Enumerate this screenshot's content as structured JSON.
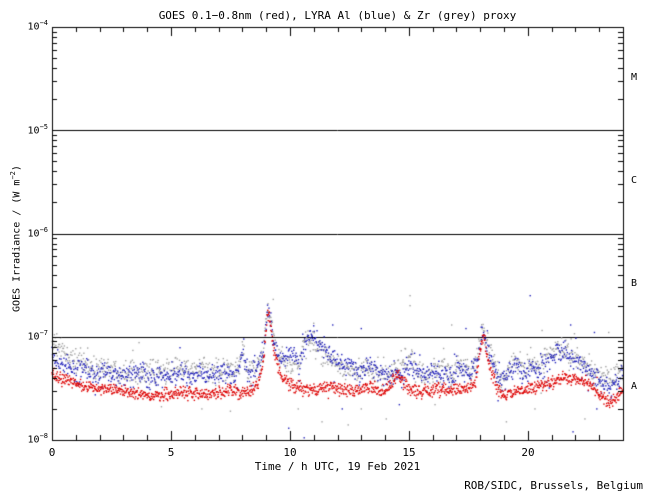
{
  "title": "GOES 0.1−0.8nm (red), LYRA Al (blue) & Zr (grey) proxy",
  "credit": "ROB/SIDC, Brussels, Belgium",
  "flare_classes": [
    "M",
    "C",
    "B",
    "A"
  ],
  "axes": {
    "y": {
      "label": {
        "pre": "GOES Irradiance / (W m",
        "exp": "−2",
        "post": ")"
      },
      "ticks": [
        {
          "base": "10",
          "exp": "−4"
        },
        {
          "base": "10",
          "exp": "−5"
        },
        {
          "base": "10",
          "exp": "−6"
        },
        {
          "base": "10",
          "exp": "−7"
        },
        {
          "base": "10",
          "exp": "−8"
        }
      ]
    },
    "x": {
      "label": "Time / h UTC, 19 Feb 2021",
      "ticks": [
        "0",
        "5",
        "10",
        "15",
        "20"
      ]
    }
  },
  "colors": {
    "background": "#ffffff",
    "axis": "#000000",
    "red": "#dd0000",
    "blue": "#2323bb",
    "grey": "#a3a3a3"
  },
  "chart_data": {
    "type": "scatter",
    "title": "GOES 0.1−0.8nm (red), LYRA Al (blue) & Zr (grey) proxy",
    "xlabel": "Time / h UTC, 19 Feb 2021",
    "ylabel": "GOES Irradiance / (W m−2)",
    "xlim": [
      0,
      24
    ],
    "ylim": [
      1e-08,
      0.0001
    ],
    "yscale": "log",
    "x_major_tick_step": 5,
    "x_minor_tick_step": 1,
    "reference_lines": [
      1e-05,
      1e-06,
      1e-07
    ],
    "flare_class_bands": [
      {
        "label": "M",
        "range": [
          1e-05,
          0.0001
        ]
      },
      {
        "label": "C",
        "range": [
          1e-06,
          1e-05
        ]
      },
      {
        "label": "B",
        "range": [
          1e-07,
          1e-06
        ]
      },
      {
        "label": "A",
        "range": [
          1e-08,
          1e-07
        ]
      }
    ],
    "series": [
      {
        "name": "LYRA Zr proxy",
        "color": "#a3a3a3",
        "scatter_sigma_log": 0.055,
        "stray_fraction": 0.07,
        "stray_mult": 2.6,
        "dot_step_h": 0.02,
        "points": [
          [
            0,
            8.6e-08
          ],
          [
            0.3,
            7.8e-08
          ],
          [
            0.6,
            6.8e-08
          ],
          [
            1,
            5.9e-08
          ],
          [
            1.5,
            5.2e-08
          ],
          [
            2,
            4.8e-08
          ],
          [
            2.3,
            5.3e-08
          ],
          [
            2.6,
            4.8e-08
          ],
          [
            3,
            4.6e-08
          ],
          [
            3.4,
            5e-08
          ],
          [
            3.8,
            4.6e-08
          ],
          [
            4.2,
            4.4e-08
          ],
          [
            4.6,
            4.5e-08
          ],
          [
            5,
            4.7e-08
          ],
          [
            5.4,
            5.5e-08
          ],
          [
            5.8,
            4.6e-08
          ],
          [
            6.2,
            4.8e-08
          ],
          [
            6.6,
            4.5e-08
          ],
          [
            7,
            4.7e-08
          ],
          [
            7.4,
            4.9e-08
          ],
          [
            7.8,
            4.4e-08
          ],
          [
            8.05,
            8e-08
          ],
          [
            8.2,
            4.6e-08
          ],
          [
            8.6,
            4.8e-08
          ],
          [
            8.9,
            7.5e-08
          ],
          [
            9.05,
            2e-07
          ],
          [
            9.15,
            1.6e-07
          ],
          [
            9.3,
            1e-07
          ],
          [
            9.5,
            7e-08
          ],
          [
            9.8,
            5.8e-08
          ],
          [
            10.1,
            4.8e-08
          ],
          [
            10.4,
            6e-08
          ],
          [
            10.7,
            9.5e-08
          ],
          [
            10.9,
            9e-08
          ],
          [
            11.1,
            8e-08
          ],
          [
            11.4,
            7e-08
          ],
          [
            11.7,
            6e-08
          ],
          [
            12,
            5.2e-08
          ],
          [
            12.4,
            4.4e-08
          ],
          [
            12.8,
            4.7e-08
          ],
          [
            13.2,
            5.2e-08
          ],
          [
            13.6,
            4.6e-08
          ],
          [
            14,
            4.1e-08
          ],
          [
            14.4,
            4.4e-08
          ],
          [
            14.8,
            5.6e-08
          ],
          [
            15.05,
            6.5e-08
          ],
          [
            15.3,
            4.6e-08
          ],
          [
            15.7,
            4.2e-08
          ],
          [
            16,
            4.6e-08
          ],
          [
            16.4,
            5.3e-08
          ],
          [
            16.8,
            4.6e-08
          ],
          [
            17.2,
            5.1e-08
          ],
          [
            17.6,
            4.8e-08
          ],
          [
            17.9,
            6.5e-08
          ],
          [
            18.1,
            1.2e-07
          ],
          [
            18.25,
            9e-08
          ],
          [
            18.45,
            6.5e-08
          ],
          [
            18.7,
            4.8e-08
          ],
          [
            18.9,
            4.1e-08
          ],
          [
            19.2,
            4.9e-08
          ],
          [
            19.5,
            5.9e-08
          ],
          [
            19.9,
            4.9e-08
          ],
          [
            20.2,
            5.9e-08
          ],
          [
            20.5,
            5.1e-08
          ],
          [
            20.8,
            6.3e-08
          ],
          [
            21.1,
            7.2e-08
          ],
          [
            21.4,
            7.8e-08
          ],
          [
            21.7,
            6.9e-08
          ],
          [
            22.1,
            5.9e-08
          ],
          [
            22.5,
            5e-08
          ],
          [
            22.9,
            4.4e-08
          ],
          [
            23.3,
            3.8e-08
          ],
          [
            23.7,
            4.3e-08
          ],
          [
            24,
            5e-08
          ]
        ],
        "outliers": [
          [
            9.3,
            2.3e-07
          ],
          [
            11.0,
            1.35e-07
          ],
          [
            15.05,
            2.5e-07
          ],
          [
            15.05,
            2e-07
          ],
          [
            16.8,
            1.3e-07
          ],
          [
            20.6,
            1.15e-07
          ],
          [
            23.4,
            1.1e-07
          ],
          [
            4.6,
            2.1e-08
          ],
          [
            6.3,
            2e-08
          ],
          [
            7.5,
            1.9e-08
          ],
          [
            10.35,
            2e-08
          ],
          [
            11.35,
            1.5e-08
          ],
          [
            12.45,
            1.4e-08
          ],
          [
            13.0,
            2e-08
          ],
          [
            14.05,
            1.6e-08
          ],
          [
            16.1,
            2.2e-08
          ],
          [
            19.1,
            1.5e-08
          ],
          [
            20.3,
            2e-08
          ],
          [
            22.4,
            1.6e-08
          ]
        ]
      },
      {
        "name": "LYRA Al proxy",
        "color": "#2323bb",
        "scatter_sigma_log": 0.05,
        "stray_fraction": 0.06,
        "stray_mult": 2.5,
        "dot_step_h": 0.02,
        "points": [
          [
            0,
            6.2e-08
          ],
          [
            0.3,
            5.7e-08
          ],
          [
            0.6,
            5.2e-08
          ],
          [
            1,
            4.8e-08
          ],
          [
            1.5,
            4.5e-08
          ],
          [
            2,
            4.3e-08
          ],
          [
            2.3,
            4.7e-08
          ],
          [
            2.6,
            4.3e-08
          ],
          [
            3,
            4.1e-08
          ],
          [
            3.4,
            4.5e-08
          ],
          [
            3.8,
            4.2e-08
          ],
          [
            4.2,
            4e-08
          ],
          [
            4.6,
            4.1e-08
          ],
          [
            5,
            4.3e-08
          ],
          [
            5.4,
            4.5e-08
          ],
          [
            5.8,
            4.2e-08
          ],
          [
            6.2,
            4.4e-08
          ],
          [
            6.6,
            4.2e-08
          ],
          [
            7,
            4.4e-08
          ],
          [
            7.4,
            4.6e-08
          ],
          [
            7.8,
            4.2e-08
          ],
          [
            8.05,
            7.5e-08
          ],
          [
            8.2,
            4.3e-08
          ],
          [
            8.6,
            4.6e-08
          ],
          [
            8.9,
            7e-08
          ],
          [
            9.05,
            1.9e-07
          ],
          [
            9.15,
            1.6e-07
          ],
          [
            9.3,
            9e-08
          ],
          [
            9.5,
            6.5e-08
          ],
          [
            9.8,
            6e-08
          ],
          [
            10.1,
            6.8e-08
          ],
          [
            10.4,
            5.2e-08
          ],
          [
            10.7,
            9e-08
          ],
          [
            10.9,
            1.05e-07
          ],
          [
            11.1,
            9e-08
          ],
          [
            11.4,
            7.8e-08
          ],
          [
            11.7,
            6.8e-08
          ],
          [
            12,
            5.8e-08
          ],
          [
            12.3,
            5e-08
          ],
          [
            12.5,
            5.6e-08
          ],
          [
            12.7,
            4.6e-08
          ],
          [
            13,
            4.4e-08
          ],
          [
            13.4,
            5.8e-08
          ],
          [
            13.7,
            4.6e-08
          ],
          [
            14,
            4.2e-08
          ],
          [
            14.4,
            4.5e-08
          ],
          [
            14.8,
            4.3e-08
          ],
          [
            15.1,
            5.6e-08
          ],
          [
            15.4,
            4.4e-08
          ],
          [
            15.8,
            4.1e-08
          ],
          [
            16.1,
            5e-08
          ],
          [
            16.4,
            4.4e-08
          ],
          [
            16.8,
            4.2e-08
          ],
          [
            17.1,
            5.2e-08
          ],
          [
            17.4,
            4.6e-08
          ],
          [
            17.7,
            5e-08
          ],
          [
            17.9,
            6e-08
          ],
          [
            18.1,
            1.15e-07
          ],
          [
            18.25,
            8.5e-08
          ],
          [
            18.45,
            6e-08
          ],
          [
            18.7,
            4.4e-08
          ],
          [
            18.9,
            3.7e-08
          ],
          [
            19.2,
            4.3e-08
          ],
          [
            19.5,
            5.4e-08
          ],
          [
            19.8,
            4.3e-08
          ],
          [
            20.1,
            5e-08
          ],
          [
            20.4,
            4.4e-08
          ],
          [
            20.7,
            5.4e-08
          ],
          [
            21,
            6.3e-08
          ],
          [
            21.3,
            7.3e-08
          ],
          [
            21.6,
            6.9e-08
          ],
          [
            22,
            5.9e-08
          ],
          [
            22.4,
            5e-08
          ],
          [
            22.8,
            4.2e-08
          ],
          [
            23.2,
            3.4e-08
          ],
          [
            23.5,
            3.2e-08
          ],
          [
            23.8,
            3.8e-08
          ],
          [
            24,
            4.4e-08
          ]
        ],
        "outliers": [
          [
            11.8,
            1.3e-07
          ],
          [
            13.0,
            1.2e-07
          ],
          [
            17.4,
            1.2e-07
          ],
          [
            20.1,
            2.5e-07
          ],
          [
            21.8,
            1.3e-07
          ],
          [
            22.8,
            1.1e-07
          ],
          [
            9.95,
            1.3e-08
          ],
          [
            10.6,
            1.05e-08
          ],
          [
            12.2,
            2e-08
          ],
          [
            14.6,
            2.2e-08
          ],
          [
            18.75,
            2.4e-08
          ],
          [
            21.9,
            1.2e-08
          ],
          [
            22.9,
            2e-08
          ]
        ]
      },
      {
        "name": "GOES 0.1-0.8nm",
        "color": "#dd0000",
        "scatter_sigma_log": 0.03,
        "stray_fraction": 0.012,
        "stray_mult": 2.0,
        "dot_step_h": 0.016,
        "points": [
          [
            0,
            4.2e-08
          ],
          [
            0.3,
            4e-08
          ],
          [
            0.6,
            3.8e-08
          ],
          [
            1,
            3.5e-08
          ],
          [
            1.5,
            3.3e-08
          ],
          [
            2,
            3.1e-08
          ],
          [
            2.5,
            3.1e-08
          ],
          [
            3,
            3e-08
          ],
          [
            3.5,
            2.8e-08
          ],
          [
            4,
            2.7e-08
          ],
          [
            4.5,
            2.7e-08
          ],
          [
            5,
            2.8e-08
          ],
          [
            5.5,
            2.9e-08
          ],
          [
            6,
            2.8e-08
          ],
          [
            6.5,
            2.8e-08
          ],
          [
            7,
            2.9e-08
          ],
          [
            7.5,
            3e-08
          ],
          [
            8,
            2.8e-08
          ],
          [
            8.4,
            3e-08
          ],
          [
            8.7,
            3.6e-08
          ],
          [
            8.9,
            6e-08
          ],
          [
            9.05,
            1.8e-07
          ],
          [
            9.15,
            1.5e-07
          ],
          [
            9.3,
            8e-08
          ],
          [
            9.5,
            5e-08
          ],
          [
            9.7,
            4e-08
          ],
          [
            10,
            3.4e-08
          ],
          [
            10.3,
            3.2e-08
          ],
          [
            10.6,
            3.1e-08
          ],
          [
            11,
            3.1e-08
          ],
          [
            11.4,
            3.2e-08
          ],
          [
            11.8,
            3.3e-08
          ],
          [
            12.2,
            3.1e-08
          ],
          [
            12.6,
            3e-08
          ],
          [
            13,
            3.1e-08
          ],
          [
            13.4,
            3.2e-08
          ],
          [
            13.8,
            2.9e-08
          ],
          [
            14.2,
            3.3e-08
          ],
          [
            14.5,
            4.3e-08
          ],
          [
            14.7,
            3.8e-08
          ],
          [
            15,
            3.1e-08
          ],
          [
            15.4,
            2.9e-08
          ],
          [
            15.8,
            3e-08
          ],
          [
            16.2,
            3.1e-08
          ],
          [
            16.6,
            3e-08
          ],
          [
            17,
            3.1e-08
          ],
          [
            17.4,
            3.2e-08
          ],
          [
            17.8,
            3.6e-08
          ],
          [
            18.05,
            9e-08
          ],
          [
            18.15,
            1.05e-07
          ],
          [
            18.3,
            6.5e-08
          ],
          [
            18.5,
            4.5e-08
          ],
          [
            18.7,
            3.2e-08
          ],
          [
            18.9,
            2.6e-08
          ],
          [
            19.2,
            2.9e-08
          ],
          [
            19.6,
            3e-08
          ],
          [
            20,
            3.1e-08
          ],
          [
            20.4,
            3.2e-08
          ],
          [
            20.8,
            3.5e-08
          ],
          [
            21.2,
            3.8e-08
          ],
          [
            21.6,
            4e-08
          ],
          [
            22,
            3.9e-08
          ],
          [
            22.4,
            3.6e-08
          ],
          [
            22.8,
            3.1e-08
          ],
          [
            23.2,
            2.5e-08
          ],
          [
            23.5,
            2.3e-08
          ],
          [
            23.8,
            2.7e-08
          ],
          [
            24,
            3e-08
          ]
        ],
        "outliers": []
      }
    ]
  }
}
